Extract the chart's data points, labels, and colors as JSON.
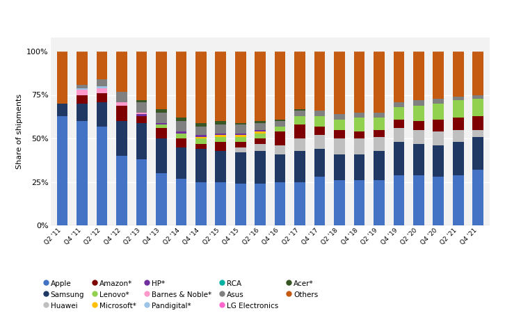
{
  "quarters": [
    "Q2 '11",
    "Q4 '11",
    "Q2 '12",
    "Q4 '12",
    "Q2 '13",
    "Q4 '13",
    "Q2 '14",
    "Q4 '14",
    "Q2 '15",
    "Q4 '15",
    "Q2 '16",
    "Q4 '16",
    "Q2 '17",
    "Q4 '17",
    "Q2 '18",
    "Q4 '18",
    "Q2 '19",
    "Q4 '19",
    "Q2 '20",
    "Q4 '20",
    "Q2 '21",
    "Q4 '21"
  ],
  "series": {
    "Apple": [
      63,
      60,
      57,
      40,
      38,
      30,
      27,
      25,
      25,
      24,
      24,
      25,
      25,
      28,
      26,
      26,
      26,
      29,
      29,
      28,
      29,
      32
    ],
    "Samsung": [
      7,
      10,
      14,
      20,
      21,
      20,
      18,
      19,
      18,
      18,
      19,
      16,
      18,
      16,
      15,
      15,
      17,
      19,
      18,
      18,
      19,
      19
    ],
    "Huawei": [
      0,
      0,
      0,
      0,
      0,
      0,
      0,
      0,
      0,
      3,
      4,
      5,
      7,
      8,
      9,
      9,
      8,
      8,
      8,
      8,
      7,
      4
    ],
    "Amazon*": [
      0,
      5,
      5,
      9,
      4,
      6,
      5,
      3,
      5,
      3,
      3,
      8,
      8,
      5,
      5,
      4,
      4,
      5,
      5,
      7,
      7,
      8
    ],
    "Lenovo*": [
      0,
      0,
      0,
      0,
      0,
      2,
      3,
      3,
      3,
      3,
      3,
      3,
      5,
      6,
      6,
      8,
      7,
      7,
      9,
      9,
      10,
      10
    ],
    "Microsoft*": [
      0,
      0,
      0,
      0,
      0,
      0,
      0,
      1,
      1,
      1,
      1,
      0,
      0,
      0,
      0,
      0,
      0,
      0,
      0,
      0,
      0,
      0
    ],
    "HP*": [
      0,
      0,
      0,
      0,
      1,
      1,
      1,
      1,
      1,
      1,
      1,
      0,
      0,
      0,
      0,
      0,
      0,
      0,
      0,
      0,
      0,
      0
    ],
    "Barnes & Noble*": [
      0,
      3,
      3,
      2,
      1,
      0,
      0,
      0,
      0,
      0,
      0,
      0,
      0,
      0,
      0,
      0,
      0,
      0,
      0,
      0,
      0,
      0
    ],
    "Pandigital*": [
      0,
      1,
      1,
      0,
      0,
      0,
      0,
      0,
      0,
      0,
      0,
      0,
      0,
      0,
      0,
      0,
      0,
      0,
      0,
      0,
      0,
      0
    ],
    "RCA": [
      0,
      0,
      0,
      0,
      0,
      0,
      0,
      0,
      0,
      0,
      0,
      0,
      0,
      0,
      0,
      0,
      0,
      0,
      0,
      0,
      0,
      0
    ],
    "Asus": [
      0,
      2,
      4,
      6,
      6,
      6,
      6,
      5,
      5,
      5,
      4,
      3,
      3,
      3,
      3,
      3,
      3,
      3,
      3,
      3,
      2,
      2
    ],
    "LG Electronics": [
      0,
      0,
      0,
      0,
      0,
      0,
      0,
      0,
      0,
      0,
      0,
      0,
      0,
      0,
      0,
      0,
      0,
      0,
      0,
      0,
      0,
      0
    ],
    "Acer*": [
      0,
      0,
      0,
      0,
      1,
      2,
      2,
      2,
      2,
      1,
      1,
      1,
      1,
      0,
      0,
      0,
      0,
      0,
      0,
      0,
      0,
      0
    ],
    "Others": [
      30,
      19,
      16,
      23,
      28,
      33,
      38,
      41,
      40,
      41,
      40,
      39,
      33,
      34,
      36,
      35,
      35,
      29,
      28,
      27,
      26,
      25
    ]
  },
  "colors": {
    "Apple": "#4472c4",
    "Samsung": "#1f3864",
    "Huawei": "#bfbfbf",
    "Amazon*": "#7f0000",
    "Lenovo*": "#92d050",
    "Microsoft*": "#ffc000",
    "HP*": "#7030a0",
    "Barnes & Noble*": "#ff99cc",
    "Pandigital*": "#9dc3e6",
    "RCA": "#00b0a0",
    "Asus": "#808080",
    "LG Electronics": "#ff66cc",
    "Acer*": "#375623",
    "Others": "#c55a11"
  },
  "series_order": [
    "Apple",
    "Samsung",
    "Huawei",
    "Amazon*",
    "Lenovo*",
    "Microsoft*",
    "HP*",
    "Barnes & Noble*",
    "Pandigital*",
    "RCA",
    "Asus",
    "LG Electronics",
    "Acer*",
    "Others"
  ],
  "legend_order": [
    [
      "Apple",
      "Samsung",
      "Huawei",
      "Amazon*",
      "Lenovo*"
    ],
    [
      "Microsoft*",
      "HP*",
      "Barnes & Noble*",
      "Pandigital*",
      "RCA"
    ],
    [
      "Asus",
      "LG Electronics",
      "Acer*",
      "Others"
    ]
  ],
  "ylabel": "Share of shipments",
  "yticks": [
    0,
    25,
    50,
    75,
    100
  ],
  "ytick_labels": [
    "0%",
    "25%",
    "50%",
    "75%",
    "100%"
  ],
  "background_color": "#ffffff",
  "plot_bg": "#f2f2f2"
}
